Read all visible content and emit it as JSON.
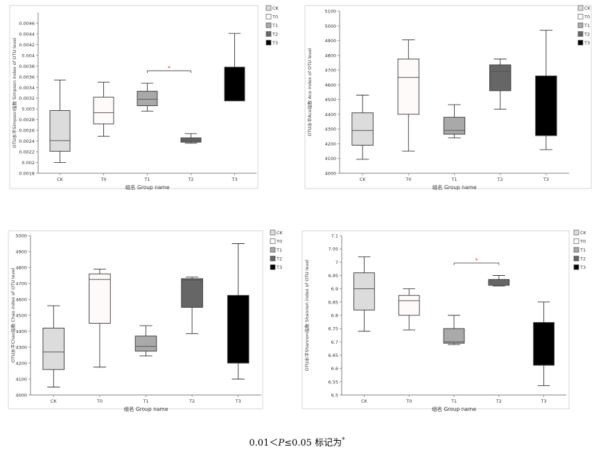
{
  "chart_data": [
    {
      "type": "boxplot",
      "ylabel": "OTU水平Simpson指数 Simpson index of OTU level",
      "xlabel": "组名 Group name",
      "ylim": [
        0.0018,
        0.0048
      ],
      "yticks": [
        0.0018,
        0.002,
        0.0022,
        0.0024,
        0.0026,
        0.0028,
        0.003,
        0.0032,
        0.0034,
        0.0036,
        0.0038,
        0.004,
        0.0042,
        0.0044,
        0.0046
      ],
      "tick_labels": [
        "0.0018",
        "0.002",
        "0.0022",
        "0.0024",
        "0.0026",
        "0.0028",
        "0.003",
        "0.0032",
        "0.0034",
        "0.0036",
        "0.0038",
        "0.004",
        "0.0042",
        "0.0044",
        "0.0046"
      ],
      "categories": [
        "CK",
        "T0",
        "T1",
        "T2",
        "T3"
      ],
      "series": [
        {
          "name": "CK",
          "color": "#dcdcdc",
          "min": 0.002,
          "q1": 0.00221,
          "median": 0.00241,
          "q3": 0.00297,
          "max": 0.00354
        },
        {
          "name": "T0",
          "color": "#fffafa",
          "min": 0.00249,
          "q1": 0.00272,
          "median": 0.00293,
          "q3": 0.00322,
          "max": 0.0035
        },
        {
          "name": "T1",
          "color": "#a9a9a9",
          "min": 0.00296,
          "q1": 0.00306,
          "median": 0.00318,
          "q3": 0.00333,
          "max": 0.00348
        },
        {
          "name": "T2",
          "color": "#666666",
          "min": 0.00236,
          "q1": 0.00238,
          "median": 0.00241,
          "q3": 0.00246,
          "max": 0.00254
        },
        {
          "name": "T3",
          "color": "#000000",
          "min": 0.00315,
          "q1": 0.00315,
          "median": 0.00315,
          "q3": 0.00378,
          "max": 0.00441
        }
      ],
      "significance": [
        {
          "from": "T1",
          "to": "T2",
          "mark": "*"
        }
      ]
    },
    {
      "type": "boxplot",
      "ylabel": "OTU水平Ace指数 Ace index of OTU level",
      "xlabel": "组名 Group name",
      "ylim": [
        4000,
        5100
      ],
      "yticks": [
        4000,
        4100,
        4200,
        4300,
        4400,
        4500,
        4600,
        4700,
        4800,
        4900,
        5000,
        5100
      ],
      "tick_labels": [
        "4000",
        "4100",
        "4200",
        "4300",
        "4400",
        "4500",
        "4600",
        "4700",
        "4800",
        "4900",
        "5000",
        "5100"
      ],
      "categories": [
        "CK",
        "T0",
        "T1",
        "T2",
        "T3"
      ],
      "series": [
        {
          "name": "CK",
          "color": "#dcdcdc",
          "min": 4095,
          "q1": 4190,
          "median": 4290,
          "q3": 4410,
          "max": 4530
        },
        {
          "name": "T0",
          "color": "#fffafa",
          "min": 4150,
          "q1": 4400,
          "median": 4650,
          "q3": 4775,
          "max": 4905
        },
        {
          "name": "T1",
          "color": "#a9a9a9",
          "min": 4240,
          "q1": 4265,
          "median": 4290,
          "q3": 4380,
          "max": 4465
        },
        {
          "name": "T2",
          "color": "#666666",
          "min": 4435,
          "q1": 4560,
          "median": 4690,
          "q3": 4735,
          "max": 4775
        },
        {
          "name": "T3",
          "color": "#000000",
          "min": 4160,
          "q1": 4255,
          "median": 4255,
          "q3": 4660,
          "max": 4970
        }
      ],
      "significance": []
    },
    {
      "type": "boxplot",
      "ylabel": "OTU水平Chao指数 Chao index of OTU level",
      "xlabel": "组名 Group name",
      "ylim": [
        4000,
        5000
      ],
      "yticks": [
        4000,
        4100,
        4200,
        4300,
        4400,
        4500,
        4600,
        4700,
        4800,
        4900,
        5000
      ],
      "tick_labels": [
        "4000",
        "4100",
        "4200",
        "4300",
        "4400",
        "4500",
        "4600",
        "4700",
        "4800",
        "4900",
        "5000"
      ],
      "categories": [
        "CK",
        "T0",
        "T1",
        "T2",
        "T3"
      ],
      "series": [
        {
          "name": "CK",
          "color": "#dcdcdc",
          "min": 4050,
          "q1": 4160,
          "median": 4270,
          "q3": 4420,
          "max": 4560
        },
        {
          "name": "T0",
          "color": "#fffafa",
          "min": 4175,
          "q1": 4450,
          "median": 4725,
          "q3": 4760,
          "max": 4790
        },
        {
          "name": "T1",
          "color": "#a9a9a9",
          "min": 4245,
          "q1": 4275,
          "median": 4305,
          "q3": 4370,
          "max": 4435
        },
        {
          "name": "T2",
          "color": "#666666",
          "min": 4385,
          "q1": 4550,
          "median": 4720,
          "q3": 4730,
          "max": 4740
        },
        {
          "name": "T3",
          "color": "#000000",
          "min": 4100,
          "q1": 4200,
          "median": 4200,
          "q3": 4625,
          "max": 4950
        }
      ],
      "significance": []
    },
    {
      "type": "boxplot",
      "ylabel": "OTU水平Shannon指数 Shannon index of OTU level",
      "xlabel": "组名 Group name",
      "ylim": [
        6.5,
        7.1
      ],
      "yticks": [
        6.5,
        6.55,
        6.6,
        6.65,
        6.7,
        6.75,
        6.8,
        6.85,
        6.9,
        6.95,
        7.0,
        7.05,
        7.1
      ],
      "tick_labels": [
        "6.5",
        "6.55",
        "6.6",
        "6.65",
        "6.7",
        "6.75",
        "6.8",
        "6.85",
        "6.9",
        "6.95",
        "7",
        "7.05",
        "7.1"
      ],
      "categories": [
        "CK",
        "T0",
        "T1",
        "T2",
        "T3"
      ],
      "series": [
        {
          "name": "CK",
          "color": "#dcdcdc",
          "min": 6.74,
          "q1": 6.82,
          "median": 6.9,
          "q3": 6.96,
          "max": 7.02
        },
        {
          "name": "T0",
          "color": "#fffafa",
          "min": 6.745,
          "q1": 6.8,
          "median": 6.855,
          "q3": 6.875,
          "max": 6.9
        },
        {
          "name": "T1",
          "color": "#a9a9a9",
          "min": 6.69,
          "q1": 6.695,
          "median": 6.7,
          "q3": 6.75,
          "max": 6.8
        },
        {
          "name": "T2",
          "color": "#666666",
          "min": 6.91,
          "q1": 6.913,
          "median": 6.913,
          "q3": 6.935,
          "max": 6.95
        },
        {
          "name": "T3",
          "color": "#000000",
          "min": 6.535,
          "q1": 6.612,
          "median": 6.612,
          "q3": 6.773,
          "max": 6.85
        }
      ],
      "significance": [
        {
          "from": "T1",
          "to": "T2",
          "mark": "*"
        }
      ]
    }
  ],
  "caption": {
    "prefix": "0.01＜",
    "p": "P",
    "suffix": "≤0.05 标记为",
    "mark": "*"
  },
  "colors": {
    "significance": "#e03030",
    "axis": "#7f7f7f",
    "grid_frame": "#cccccc"
  }
}
